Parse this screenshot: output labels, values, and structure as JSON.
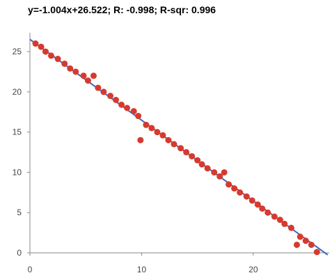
{
  "chart_data": {
    "type": "scatter",
    "title": "y=-1.004x+26.522; R: -0.998; R-sqr: 0.996",
    "xlabel": "",
    "ylabel": "",
    "xlim": [
      0,
      26.8
    ],
    "ylim": [
      0,
      27
    ],
    "x_ticks": [
      0,
      10,
      20
    ],
    "y_ticks": [
      0,
      5,
      10,
      15,
      20,
      25
    ],
    "grid": false,
    "trendline": {
      "slope": -1.004,
      "intercept": 26.522,
      "color": "#3a66c4"
    },
    "point_color": "#d63a2e",
    "points": [
      [
        0.5,
        26.0
      ],
      [
        1.0,
        25.6
      ],
      [
        1.4,
        25.0
      ],
      [
        1.9,
        24.5
      ],
      [
        2.5,
        24.1
      ],
      [
        3.1,
        23.5
      ],
      [
        3.6,
        22.9
      ],
      [
        4.1,
        22.5
      ],
      [
        4.8,
        22.0
      ],
      [
        5.2,
        21.4
      ],
      [
        5.7,
        22.0
      ],
      [
        6.1,
        20.5
      ],
      [
        6.6,
        20.0
      ],
      [
        7.2,
        19.5
      ],
      [
        7.7,
        19.0
      ],
      [
        8.2,
        18.4
      ],
      [
        8.7,
        18.0
      ],
      [
        9.3,
        17.6
      ],
      [
        9.7,
        17.0
      ],
      [
        9.9,
        14.0
      ],
      [
        10.4,
        15.9
      ],
      [
        10.9,
        15.5
      ],
      [
        11.4,
        15.0
      ],
      [
        11.9,
        14.6
      ],
      [
        12.4,
        14.0
      ],
      [
        12.9,
        13.5
      ],
      [
        13.5,
        13.0
      ],
      [
        14.0,
        12.5
      ],
      [
        14.5,
        12.0
      ],
      [
        15.0,
        11.5
      ],
      [
        15.4,
        11.0
      ],
      [
        15.9,
        10.5
      ],
      [
        16.5,
        10.0
      ],
      [
        17.0,
        9.5
      ],
      [
        17.4,
        10.0
      ],
      [
        17.8,
        8.5
      ],
      [
        18.3,
        8.0
      ],
      [
        18.8,
        7.5
      ],
      [
        19.4,
        7.0
      ],
      [
        19.9,
        6.5
      ],
      [
        20.4,
        6.0
      ],
      [
        20.8,
        5.5
      ],
      [
        21.3,
        5.0
      ],
      [
        21.9,
        4.5
      ],
      [
        22.4,
        4.1
      ],
      [
        22.8,
        3.6
      ],
      [
        23.4,
        3.1
      ],
      [
        23.9,
        1.0
      ],
      [
        24.2,
        2.0
      ],
      [
        24.7,
        1.5
      ],
      [
        25.2,
        1.0
      ],
      [
        25.7,
        0.1
      ]
    ]
  }
}
